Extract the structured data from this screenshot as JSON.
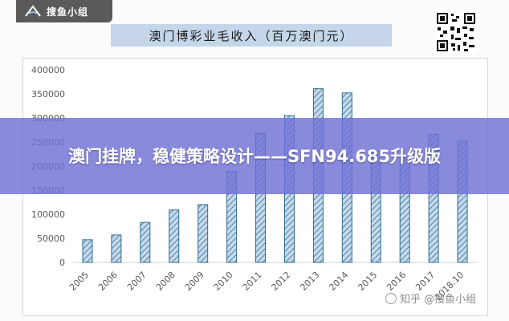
{
  "header": {
    "logo_text": "搜鱼小组",
    "title": "澳门博彩业毛收入（百万澳门元）"
  },
  "overlay": {
    "headline": "澳门挂牌，稳健策略设计——SFN94.685升级版"
  },
  "watermark": {
    "text": "知乎 @搜鱼小组"
  },
  "colors": {
    "bar_fill": "#c6d9ec",
    "bar_stroke": "#2f6d8f",
    "overlay": "#7070d6",
    "title_bg": "#c5d6ea"
  },
  "chart_data": {
    "type": "bar",
    "title": "澳门博彩业毛收入（百万澳门元）",
    "xlabel": "",
    "ylabel": "",
    "categories": [
      "2005",
      "2006",
      "2007",
      "2008",
      "2009",
      "2010",
      "2011",
      "2012",
      "2013",
      "2014",
      "2015",
      "2016",
      "2017",
      "2018.10"
    ],
    "values": [
      47000,
      57000,
      83000,
      109000,
      120000,
      189000,
      268000,
      305000,
      361000,
      352000,
      231000,
      224000,
      266000,
      252000
    ],
    "ylim": [
      0,
      400000
    ],
    "yticks": [
      "0",
      "50000",
      "100000",
      "150000",
      "200000",
      "250000",
      "300000",
      "350000",
      "400000"
    ],
    "grid": false,
    "bar_pattern": "diagonal-hatch"
  }
}
